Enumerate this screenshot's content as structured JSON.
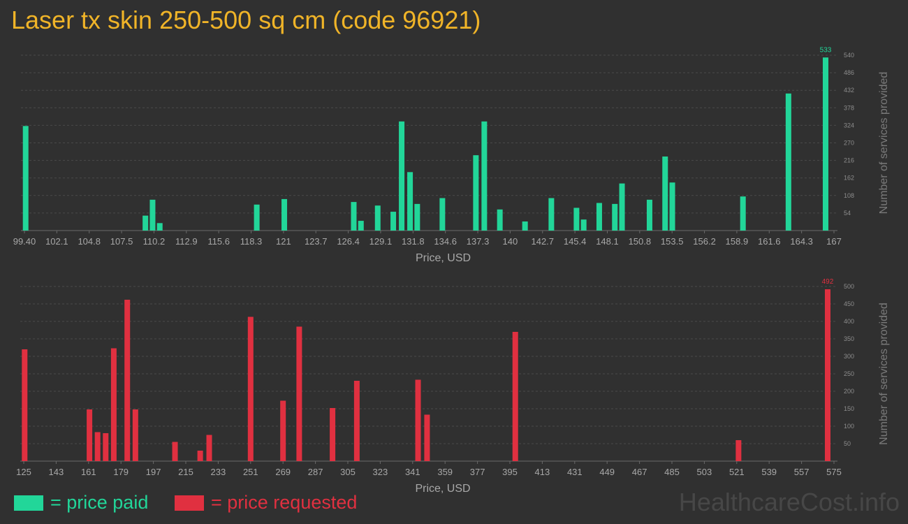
{
  "title": "Laser tx skin 250-500 sq cm (code 96921)",
  "watermark": "HealthcareCost.info",
  "colors": {
    "paid": "#22d699",
    "requested": "#e03040",
    "title": "#f0b428"
  },
  "legend": {
    "paid_label": "= price paid",
    "requested_label": "= price requested"
  },
  "chart_data": [
    {
      "type": "bar",
      "series_name": "price paid",
      "xlabel": "Price, USD",
      "ylabel": "Number of services provided",
      "xlim": [
        99.4,
        167
      ],
      "ylim": [
        0,
        540
      ],
      "x_ticks": [
        "99.40",
        "102.1",
        "104.8",
        "107.5",
        "110.2",
        "112.9",
        "115.6",
        "118.3",
        "121",
        "123.7",
        "126.4",
        "129.1",
        "131.8",
        "134.6",
        "137.3",
        "140",
        "142.7",
        "145.4",
        "148.1",
        "150.8",
        "153.5",
        "156.2",
        "158.9",
        "161.6",
        "164.3",
        "167"
      ],
      "y_ticks": [
        54,
        108,
        162,
        216,
        270,
        324,
        378,
        432,
        486,
        540
      ],
      "max_label": "533",
      "x": [
        99.5,
        109.5,
        110.1,
        110.7,
        118.8,
        121.1,
        126.9,
        127.5,
        128.9,
        130.2,
        130.9,
        131.6,
        132.2,
        134.3,
        137.1,
        137.8,
        139.1,
        141.2,
        143.4,
        145.5,
        146.1,
        147.4,
        148.7,
        149.3,
        151.6,
        152.9,
        153.5,
        159.4,
        163.2,
        166.3
      ],
      "values": [
        322,
        46,
        95,
        23,
        80,
        97,
        88,
        30,
        77,
        58,
        336,
        180,
        82,
        100,
        232,
        336,
        65,
        28,
        100,
        70,
        34,
        85,
        82,
        145,
        95,
        228,
        148,
        105,
        422,
        533
      ]
    },
    {
      "type": "bar",
      "series_name": "price requested",
      "xlabel": "Price, USD",
      "ylabel": "Number of services provided",
      "xlim": [
        125,
        575
      ],
      "ylim": [
        0,
        500
      ],
      "x_ticks": [
        "125",
        "143",
        "161",
        "179",
        "197",
        "215",
        "233",
        "251",
        "269",
        "287",
        "305",
        "323",
        "341",
        "359",
        "377",
        "395",
        "413",
        "431",
        "449",
        "467",
        "485",
        "503",
        "521",
        "539",
        "557",
        "575"
      ],
      "y_ticks": [
        50,
        100,
        150,
        200,
        250,
        300,
        350,
        400,
        450,
        500
      ],
      "max_label": "492",
      "x": [
        125.5,
        161.5,
        166,
        170.5,
        175,
        182.5,
        187,
        209,
        223,
        228,
        251,
        269,
        278,
        296.5,
        310,
        344,
        349,
        398,
        522,
        571.5
      ],
      "values": [
        320,
        148,
        83,
        80,
        323,
        462,
        148,
        55,
        30,
        75,
        413,
        173,
        385,
        152,
        230,
        233,
        133,
        370,
        60,
        492
      ]
    }
  ]
}
